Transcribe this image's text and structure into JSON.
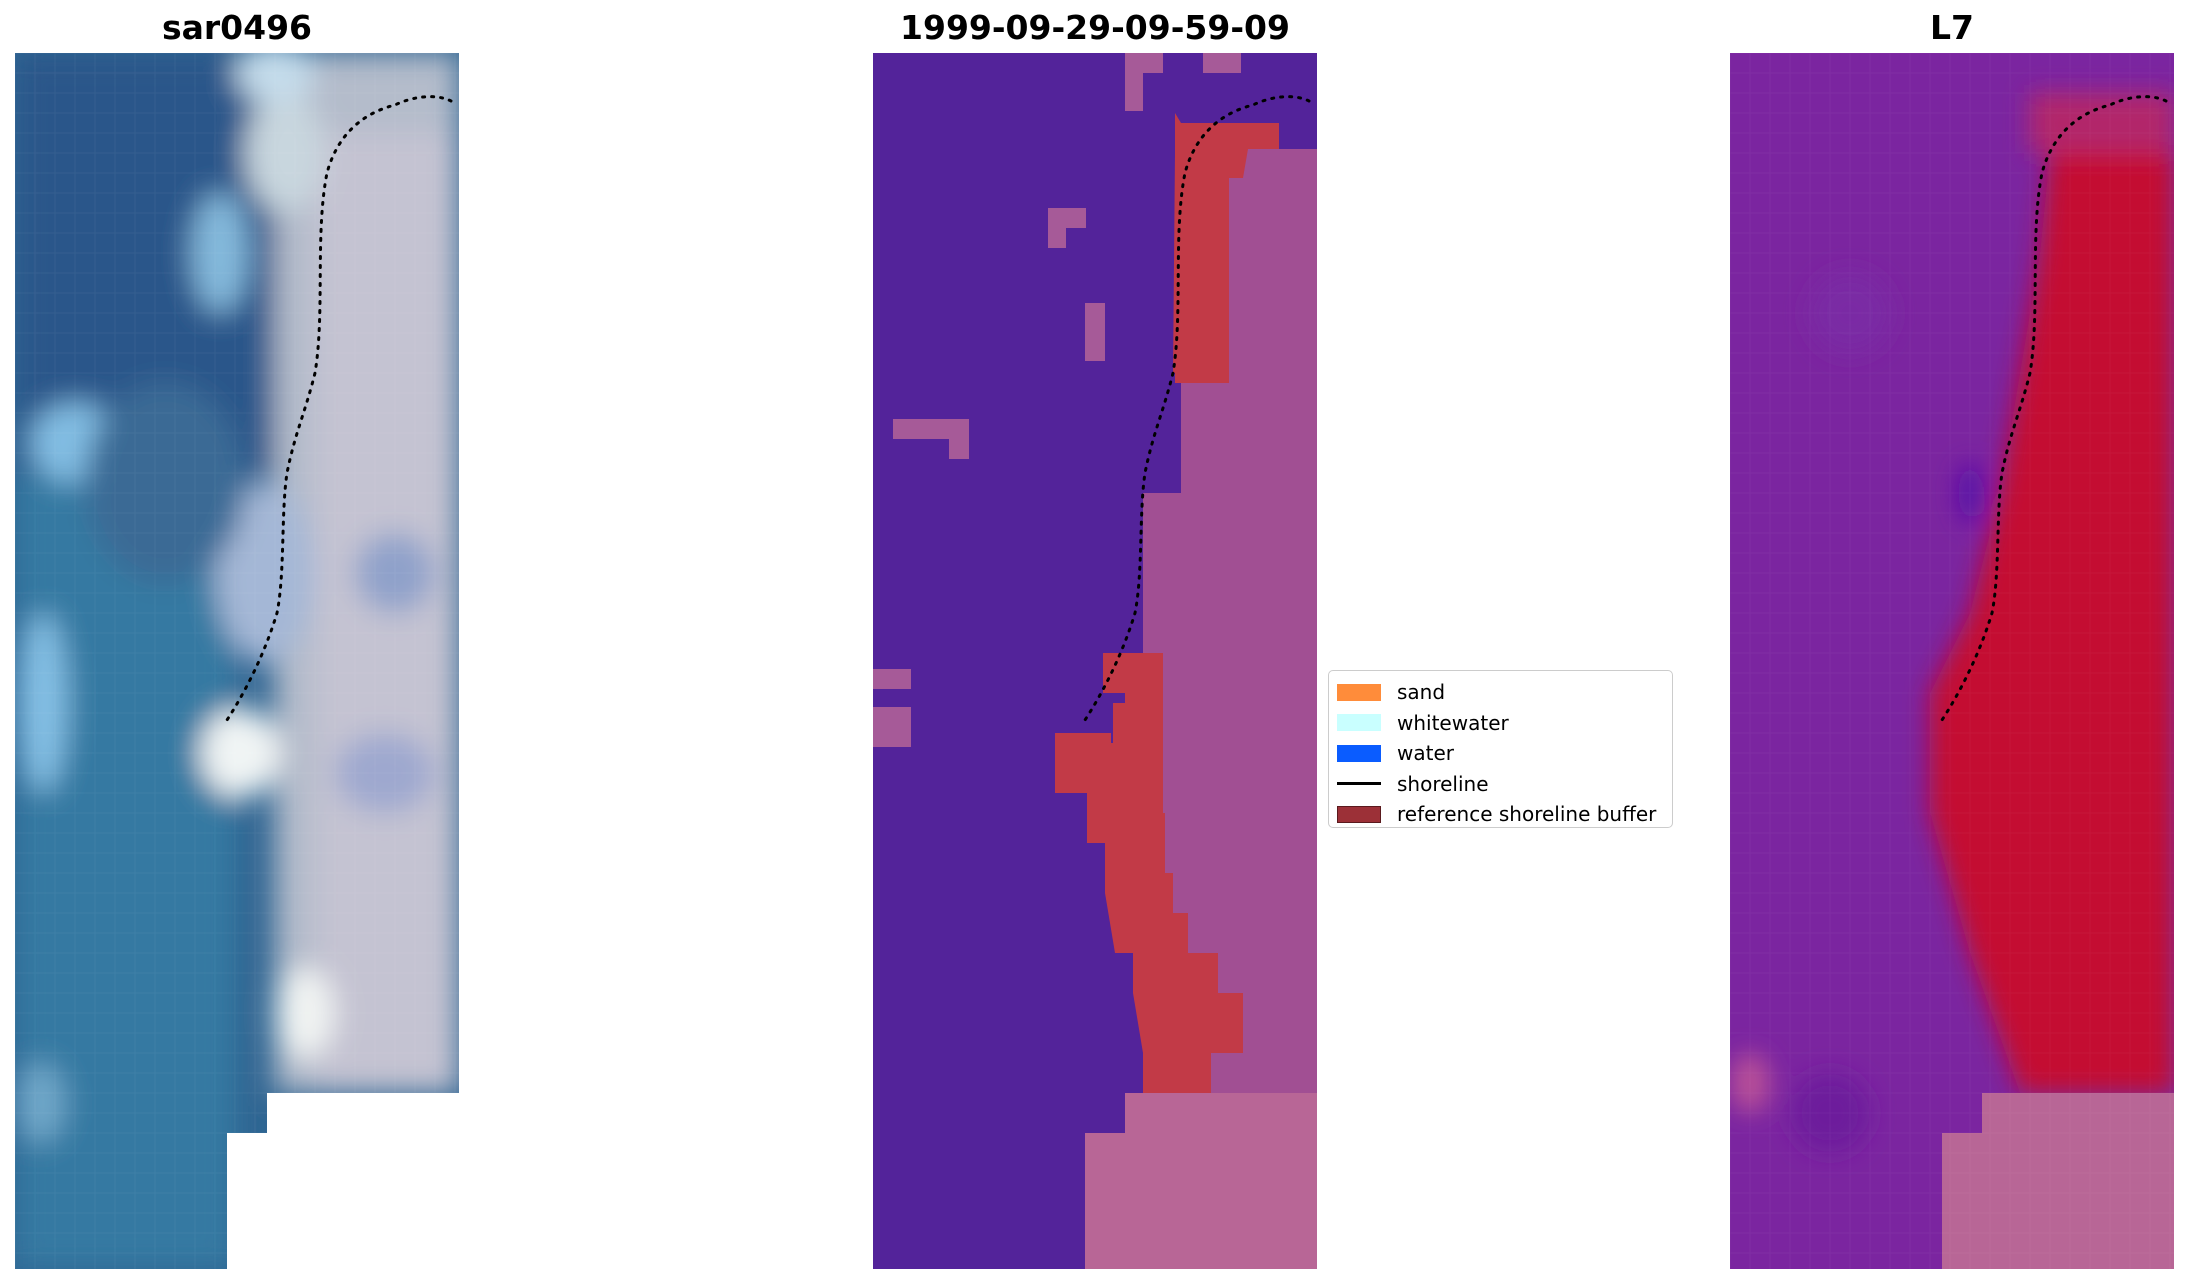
{
  "panels": [
    {
      "title": "sar0496"
    },
    {
      "title": "1999-09-29-09-59-09"
    },
    {
      "title": "L7"
    }
  ],
  "legend": {
    "items": [
      {
        "label": "sand",
        "color": "#ff8c3a",
        "kind": "patch"
      },
      {
        "label": "whitewater",
        "color": "#c9ffff",
        "kind": "patch"
      },
      {
        "label": "water",
        "color": "#0a5cff",
        "kind": "patch"
      },
      {
        "label": "shoreline",
        "color": "#000000",
        "kind": "line"
      },
      {
        "label": "reference shoreline buffer",
        "color": "#9c3037",
        "kind": "patch"
      }
    ]
  },
  "colors": {
    "water_class": "#53239a",
    "reference_buffer_overlay": "#c43b48",
    "land_overlay": "#b86696",
    "shoreline_dots": "#000000"
  },
  "icons": [
    "shoreline-dotted-line"
  ]
}
